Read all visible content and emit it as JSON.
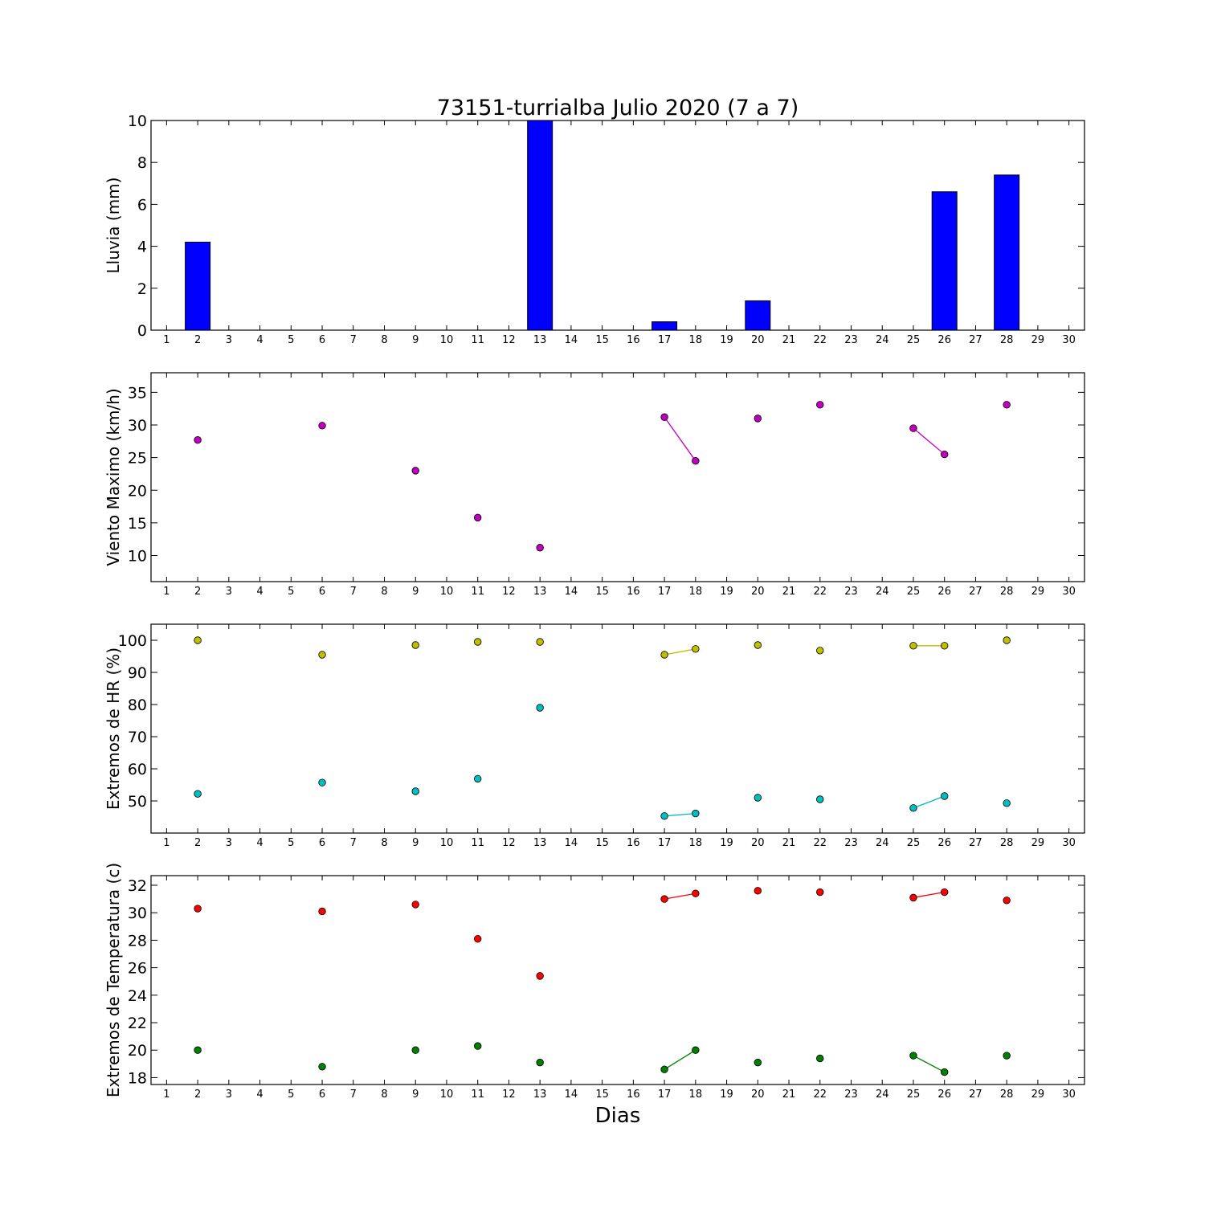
{
  "title": "73151-turrialba Julio 2020  (7 a 7)",
  "xlabel": "Dias",
  "x_ticks": [
    1,
    2,
    3,
    4,
    5,
    6,
    7,
    8,
    9,
    10,
    11,
    12,
    13,
    14,
    15,
    16,
    17,
    18,
    19,
    20,
    21,
    22,
    23,
    24,
    25,
    26,
    27,
    28,
    29,
    30
  ],
  "chart_data": [
    {
      "type": "bar",
      "ylabel": "Lluvia (mm)",
      "ylim": [
        0,
        10
      ],
      "yticks": [
        0,
        2,
        4,
        6,
        8,
        10
      ],
      "xlim": [
        0.5,
        30.5
      ],
      "color": "#0000ff",
      "categories": [
        1,
        2,
        3,
        4,
        5,
        6,
        7,
        8,
        9,
        10,
        11,
        12,
        13,
        14,
        15,
        16,
        17,
        18,
        19,
        20,
        21,
        22,
        23,
        24,
        25,
        26,
        27,
        28,
        29,
        30
      ],
      "values": [
        0,
        4.2,
        0,
        0,
        0,
        0,
        0,
        0,
        0,
        0,
        0,
        0,
        10,
        0,
        0,
        0,
        0.4,
        0,
        0,
        1.4,
        0,
        0,
        0,
        0,
        0,
        6.6,
        0,
        7.4,
        0,
        0
      ]
    },
    {
      "type": "line",
      "ylabel": "Viento Maximo (km/h)",
      "ylim": [
        6,
        38
      ],
      "yticks": [
        10,
        15,
        20,
        25,
        30,
        35
      ],
      "xlim": [
        0.5,
        30.5
      ],
      "series": [
        {
          "color": "#bf00bf",
          "x": [
            1,
            2,
            3,
            4,
            5,
            6,
            7,
            8,
            9,
            10,
            11,
            12,
            13,
            14,
            15,
            16,
            17,
            18,
            19,
            20,
            21,
            22,
            23,
            24,
            25,
            26,
            27,
            28,
            29,
            30
          ],
          "y": [
            null,
            27.7,
            null,
            null,
            null,
            29.9,
            null,
            null,
            23.0,
            null,
            15.8,
            null,
            11.2,
            null,
            null,
            null,
            31.2,
            24.5,
            null,
            31.0,
            null,
            33.1,
            null,
            null,
            29.5,
            25.5,
            null,
            33.1,
            null,
            null
          ]
        }
      ]
    },
    {
      "type": "line",
      "ylabel": "Extremos de HR (%)",
      "ylim": [
        40,
        105
      ],
      "yticks": [
        50,
        60,
        70,
        80,
        90,
        100
      ],
      "xlim": [
        0.5,
        30.5
      ],
      "series": [
        {
          "color": "#bfbf00",
          "x": [
            1,
            2,
            3,
            4,
            5,
            6,
            7,
            8,
            9,
            10,
            11,
            12,
            13,
            14,
            15,
            16,
            17,
            18,
            19,
            20,
            21,
            22,
            23,
            24,
            25,
            26,
            27,
            28,
            29,
            30
          ],
          "y": [
            null,
            100,
            null,
            null,
            null,
            95.5,
            null,
            null,
            98.5,
            null,
            99.5,
            null,
            99.5,
            null,
            null,
            null,
            95.5,
            97.3,
            null,
            98.5,
            null,
            96.8,
            null,
            null,
            98.3,
            98.3,
            null,
            100,
            null,
            null
          ]
        },
        {
          "color": "#00bfbf",
          "x": [
            1,
            2,
            3,
            4,
            5,
            6,
            7,
            8,
            9,
            10,
            11,
            12,
            13,
            14,
            15,
            16,
            17,
            18,
            19,
            20,
            21,
            22,
            23,
            24,
            25,
            26,
            27,
            28,
            29,
            30
          ],
          "y": [
            null,
            52.2,
            null,
            null,
            null,
            55.7,
            null,
            null,
            53.0,
            null,
            56.9,
            null,
            79.0,
            null,
            null,
            null,
            45.3,
            46.1,
            null,
            51.0,
            null,
            50.5,
            null,
            null,
            47.8,
            51.5,
            null,
            49.3,
            null,
            null
          ]
        }
      ]
    },
    {
      "type": "line",
      "ylabel": "Extremos de Temperatura (c)",
      "ylim": [
        17.5,
        32.7
      ],
      "yticks": [
        18,
        20,
        22,
        24,
        26,
        28,
        30,
        32
      ],
      "xlim": [
        0.5,
        30.5
      ],
      "series": [
        {
          "color": "#ff0000",
          "x": [
            1,
            2,
            3,
            4,
            5,
            6,
            7,
            8,
            9,
            10,
            11,
            12,
            13,
            14,
            15,
            16,
            17,
            18,
            19,
            20,
            21,
            22,
            23,
            24,
            25,
            26,
            27,
            28,
            29,
            30
          ],
          "y": [
            null,
            30.3,
            null,
            null,
            null,
            30.1,
            null,
            null,
            30.6,
            null,
            28.1,
            null,
            25.4,
            null,
            null,
            null,
            31.0,
            31.4,
            null,
            31.6,
            null,
            31.5,
            null,
            null,
            31.1,
            31.5,
            null,
            30.9,
            null,
            null
          ]
        },
        {
          "color": "#008000",
          "x": [
            1,
            2,
            3,
            4,
            5,
            6,
            7,
            8,
            9,
            10,
            11,
            12,
            13,
            14,
            15,
            16,
            17,
            18,
            19,
            20,
            21,
            22,
            23,
            24,
            25,
            26,
            27,
            28,
            29,
            30
          ],
          "y": [
            null,
            20.0,
            null,
            null,
            null,
            18.8,
            null,
            null,
            20.0,
            null,
            20.3,
            null,
            19.1,
            null,
            null,
            null,
            18.6,
            20.0,
            null,
            19.1,
            null,
            19.4,
            null,
            null,
            19.6,
            18.4,
            null,
            19.6,
            null,
            null
          ]
        }
      ]
    }
  ]
}
